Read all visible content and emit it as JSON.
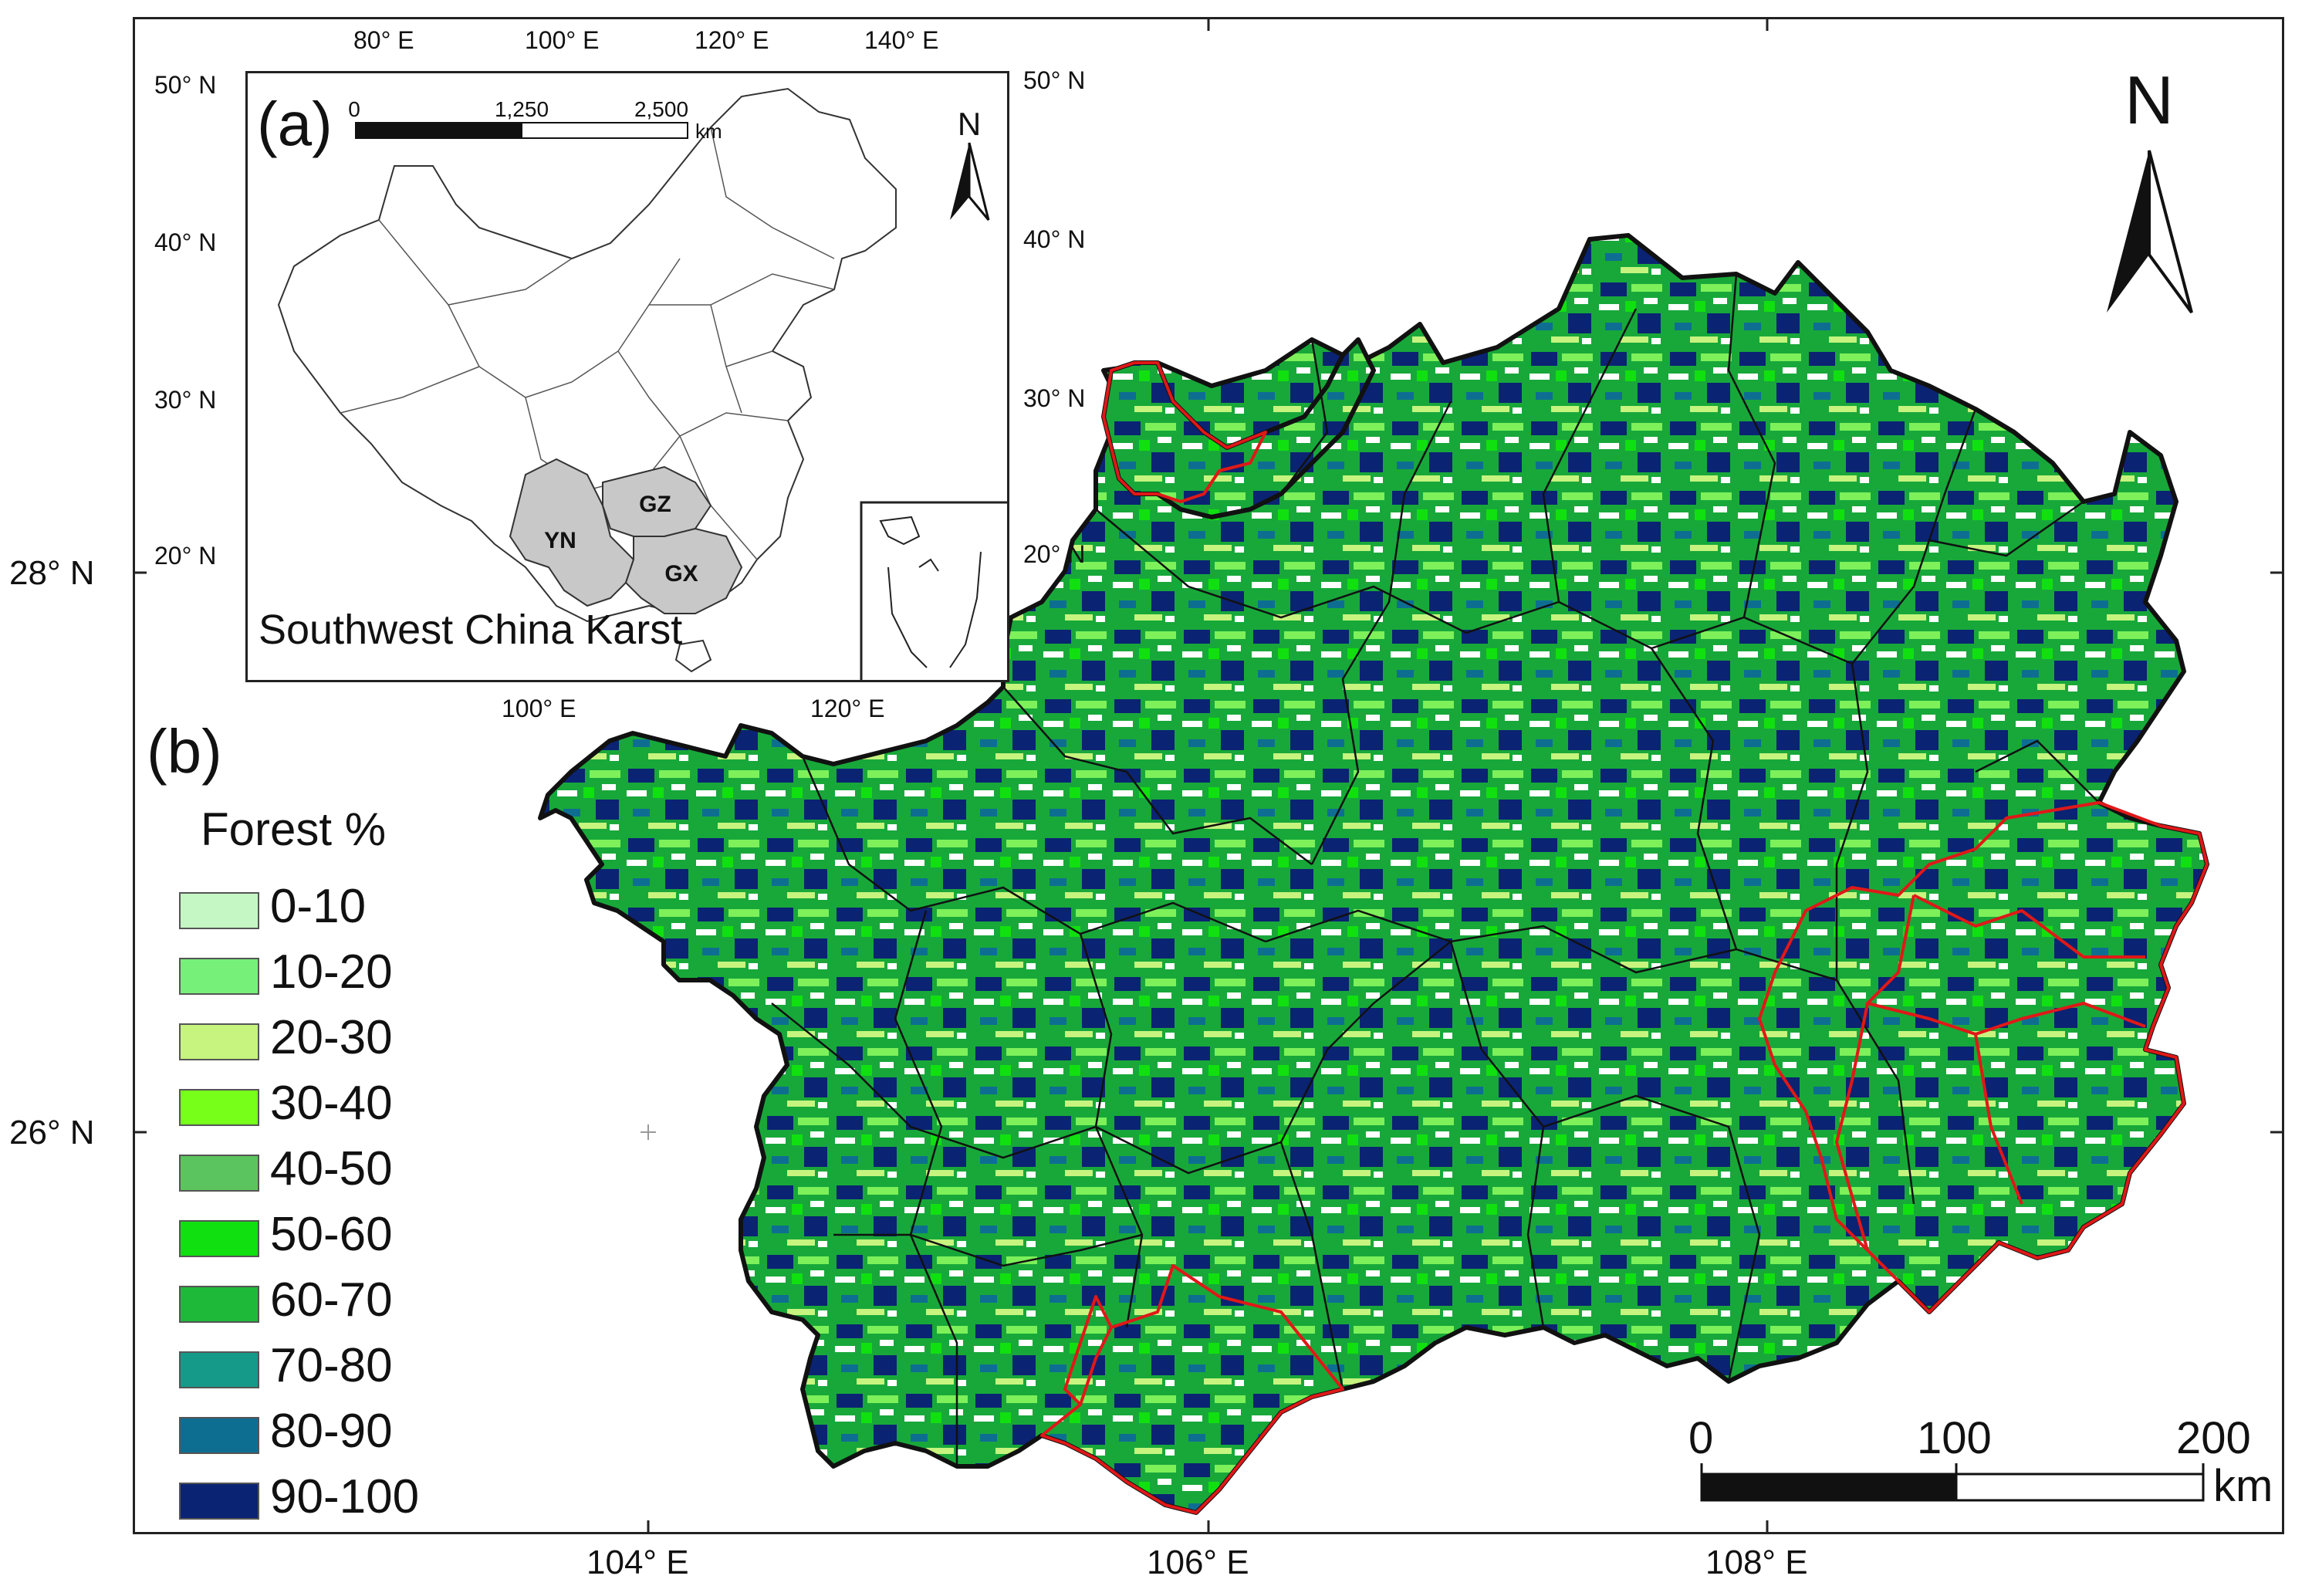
{
  "outer_axes": {
    "x_ticks": [
      "104° E",
      "106° E",
      "108° E"
    ],
    "y_ticks": [
      "28° N",
      "26° N"
    ]
  },
  "panel_b": {
    "label": "(b)",
    "north_label": "N",
    "legend": {
      "title": "Forest %",
      "items": [
        {
          "label": "0-10",
          "color": "#c4f7c4"
        },
        {
          "label": "10-20",
          "color": "#77f07a"
        },
        {
          "label": "20-30",
          "color": "#c6f47e"
        },
        {
          "label": "30-40",
          "color": "#77ff1a"
        },
        {
          "label": "40-50",
          "color": "#5cc45e"
        },
        {
          "label": "50-60",
          "color": "#10e010"
        },
        {
          "label": "60-70",
          "color": "#1fb93a"
        },
        {
          "label": "70-80",
          "color": "#159a8a"
        },
        {
          "label": "80-90",
          "color": "#0e6e92"
        },
        {
          "label": "90-100",
          "color": "#0b2373"
        }
      ]
    },
    "scale_bar": {
      "ticks": [
        "0",
        "100",
        "200"
      ],
      "unit": "km"
    },
    "colors": {
      "forest_high": "#0b2373",
      "forest_mid": "#18a83a",
      "forest_low": "#7df05a",
      "region_outline": "#e01818",
      "boundary": "#111111"
    }
  },
  "panel_a": {
    "label": "(a)",
    "title": "Southwest China Karst",
    "north_label": "N",
    "top_ticks": [
      "80° E",
      "100° E",
      "120° E",
      "140° E"
    ],
    "bottom_ticks": [
      "100° E",
      "120° E"
    ],
    "left_ticks": [
      "50° N",
      "40° N",
      "30° N",
      "20° N"
    ],
    "right_ticks": [
      "50° N",
      "40° N",
      "30° N",
      "20° N"
    ],
    "scale_bar": {
      "ticks": [
        "0",
        "1,250",
        "2,500"
      ],
      "unit": "km"
    },
    "provinces": [
      "YN",
      "GZ",
      "GX"
    ],
    "province_color": "#c8c8c8"
  }
}
